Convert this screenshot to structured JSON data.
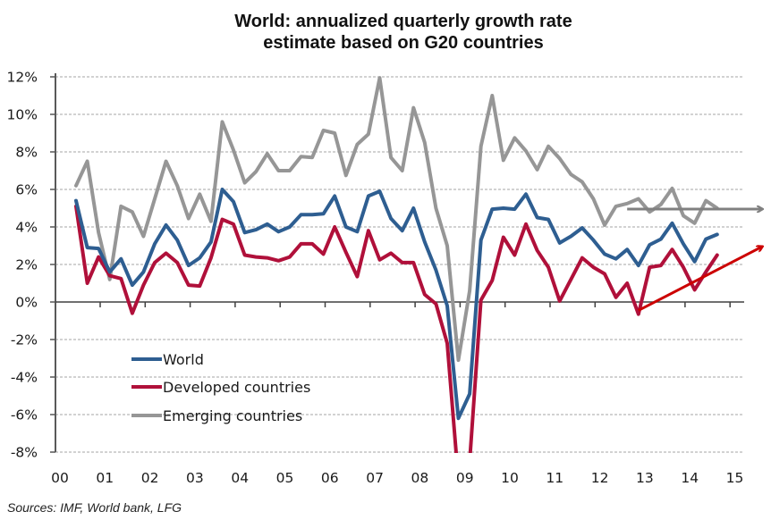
{
  "title_lines": [
    "World: annualized quarterly growth rate",
    "estimate based on G20 countries"
  ],
  "source": "Sources: IMF, World bank, LFG",
  "chart_data": {
    "type": "line",
    "title": "World: annualized quarterly growth rate estimate based on G20 countries",
    "xlabel": "",
    "ylabel": "",
    "ylim": [
      -8,
      12
    ],
    "yticks": [
      -8,
      -6,
      -4,
      -2,
      0,
      2,
      4,
      6,
      8,
      10,
      12
    ],
    "ytick_labels": [
      "-8%",
      "-6%",
      "-4%",
      "-2%",
      "0%",
      "2%",
      "4%",
      "6%",
      "8%",
      "10%",
      "12%"
    ],
    "xtick_labels": [
      "00",
      "01",
      "02",
      "03",
      "04",
      "05",
      "06",
      "07",
      "08",
      "09",
      "10",
      "11",
      "12",
      "13",
      "14",
      "15"
    ],
    "x_start": "2000Q2",
    "x_end": "2014Q3",
    "grid": true,
    "legend_placement": "bottom-left",
    "series": [
      {
        "name": "World",
        "color": "#2E5E91",
        "values": [
          5.4,
          2.9,
          2.85,
          1.6,
          2.3,
          0.9,
          1.6,
          3.1,
          4.1,
          3.3,
          1.95,
          2.35,
          3.2,
          6.0,
          5.35,
          3.7,
          3.85,
          4.15,
          3.75,
          4.0,
          4.65,
          4.65,
          4.7,
          5.65,
          4.0,
          3.75,
          5.65,
          5.9,
          4.45,
          3.8,
          5.0,
          3.2,
          1.7,
          -0.2,
          -6.2,
          -4.9,
          3.3,
          4.95,
          5.0,
          4.95,
          5.75,
          4.5,
          4.4,
          3.15,
          3.5,
          3.95,
          3.3,
          2.55,
          2.3,
          2.8,
          1.95,
          3.05,
          3.35,
          4.2,
          3.1,
          2.15,
          3.35,
          3.6
        ]
      },
      {
        "name": "Developed countries",
        "color": "#B0103A",
        "values": [
          5.1,
          1.0,
          2.4,
          1.4,
          1.25,
          -0.6,
          0.9,
          2.1,
          2.6,
          2.1,
          0.9,
          0.85,
          2.35,
          4.4,
          4.15,
          2.5,
          2.4,
          2.35,
          2.2,
          2.4,
          3.1,
          3.1,
          2.55,
          4.0,
          2.65,
          1.35,
          3.8,
          2.25,
          2.6,
          2.1,
          2.1,
          0.4,
          -0.1,
          -2.2,
          -9.5,
          -8.5,
          0.1,
          1.15,
          3.45,
          2.5,
          4.15,
          2.75,
          1.85,
          0.05,
          1.2,
          2.35,
          1.85,
          1.5,
          0.25,
          1.0,
          -0.65,
          1.85,
          1.95,
          2.8,
          1.85,
          0.65,
          1.6,
          2.5
        ]
      },
      {
        "name": "Emerging countries",
        "color": "#969696",
        "values": [
          6.2,
          7.5,
          3.7,
          1.2,
          5.1,
          4.8,
          3.5,
          5.5,
          7.5,
          6.2,
          4.45,
          5.75,
          4.3,
          9.6,
          8.1,
          6.35,
          6.95,
          7.9,
          7.0,
          7.0,
          7.75,
          7.7,
          9.15,
          9.0,
          6.75,
          8.4,
          8.95,
          11.95,
          7.7,
          7.0,
          10.35,
          8.5,
          5.0,
          3.0,
          -3.1,
          0.6,
          8.3,
          11.0,
          7.55,
          8.75,
          8.05,
          7.05,
          8.3,
          7.65,
          6.8,
          6.4,
          5.5,
          4.1,
          5.1,
          5.25,
          5.5,
          4.8,
          5.2,
          6.05,
          4.6,
          4.2,
          5.4,
          5.0
        ]
      }
    ],
    "annotations": [
      {
        "type": "arrow",
        "name": "emerging-trend-arrow",
        "color": "#808080",
        "from": {
          "x": "2012Q3",
          "y": 4.95
        },
        "to": {
          "x": "2015Q3",
          "y": 4.95
        },
        "meaning": "flat trend for emerging countries"
      },
      {
        "type": "arrow",
        "name": "developed-trend-arrow",
        "color": "#CC0000",
        "from": {
          "x": "2012Q4",
          "y": -0.45
        },
        "to": {
          "x": "2015Q3",
          "y": 2.95
        },
        "meaning": "rising trend for developed countries"
      }
    ]
  }
}
